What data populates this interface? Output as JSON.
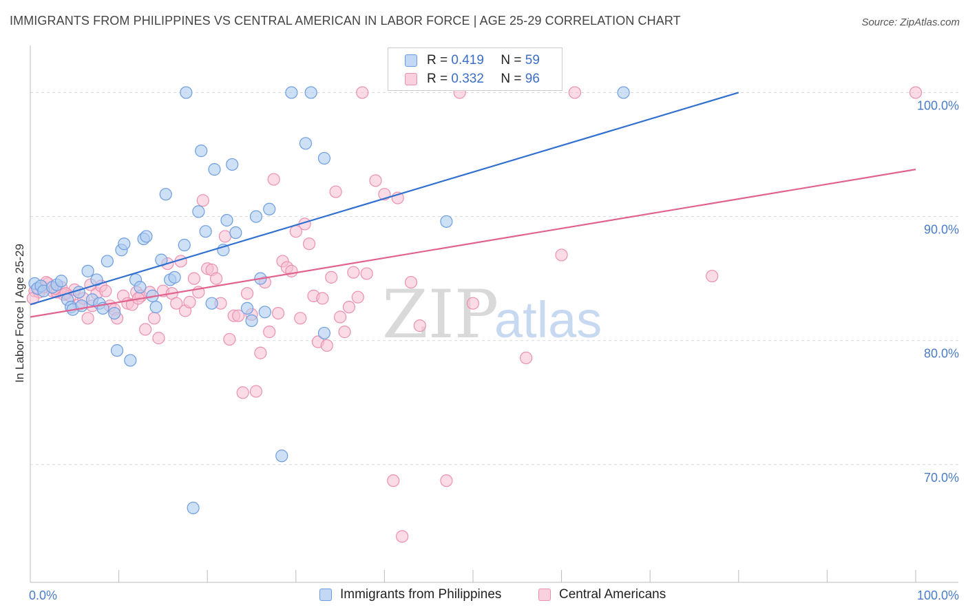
{
  "title": "IMMIGRANTS FROM PHILIPPINES VS CENTRAL AMERICAN IN LABOR FORCE | AGE 25-29 CORRELATION CHART",
  "source": "Source: ZipAtlas.com",
  "watermark": {
    "zip": "ZIP",
    "atlas": "atlas"
  },
  "legend": {
    "r_label": "R =",
    "n_label": "N =",
    "series1": {
      "r": "0.419",
      "n": "59"
    },
    "series2": {
      "r": "0.332",
      "n": "96"
    }
  },
  "bottom_legend": {
    "series1": "Immigrants from Philippines",
    "series2": "Central Americans"
  },
  "colors": {
    "blue_fill": "#aecbf0",
    "blue_stroke": "#6c9de0",
    "blue_line": "#2f6fd0",
    "pink_fill": "#f7bfd1",
    "pink_stroke": "#ec8fae",
    "pink_line": "#e0628d",
    "tick_text": "#4a7cc7"
  },
  "chart_data": {
    "type": "scatter",
    "title": "IMMIGRANTS FROM PHILIPPINES VS CENTRAL AMERICAN IN LABOR FORCE | AGE 25-29 CORRELATION CHART",
    "xlabel": "",
    "ylabel": "In Labor Force | Age 25-29",
    "xlim": [
      0,
      100
    ],
    "ylim": [
      60.5,
      103.8
    ],
    "x_tick_labels": [
      "0.0%",
      "100.0%"
    ],
    "y_ticks": [
      {
        "value": 70,
        "label": "70.0%"
      },
      {
        "value": 80,
        "label": "80.0%"
      },
      {
        "value": 90,
        "label": "90.0%"
      },
      {
        "value": 100,
        "label": "100.0%"
      }
    ],
    "series": [
      {
        "name": "Immigrants from Philippines",
        "r": 0.419,
        "n": 59,
        "trend": {
          "x0": 0,
          "y0": 82.9,
          "x1": 80,
          "y1": 100.0
        },
        "points": [
          [
            0.5,
            84.6
          ],
          [
            0.8,
            84.2
          ],
          [
            1.2,
            84.4
          ],
          [
            1.5,
            84.0
          ],
          [
            2.5,
            84.3
          ],
          [
            3.0,
            84.5
          ],
          [
            3.5,
            84.8
          ],
          [
            4.2,
            83.3
          ],
          [
            4.6,
            82.7
          ],
          [
            4.8,
            82.5
          ],
          [
            5.5,
            83.9
          ],
          [
            5.8,
            82.8
          ],
          [
            6.5,
            85.6
          ],
          [
            7.0,
            83.3
          ],
          [
            7.5,
            84.9
          ],
          [
            7.8,
            83.0
          ],
          [
            8.2,
            82.6
          ],
          [
            8.7,
            86.4
          ],
          [
            9.5,
            82.2
          ],
          [
            9.8,
            79.2
          ],
          [
            10.3,
            87.3
          ],
          [
            10.6,
            87.8
          ],
          [
            11.3,
            78.4
          ],
          [
            11.9,
            84.9
          ],
          [
            12.4,
            84.3
          ],
          [
            12.8,
            88.2
          ],
          [
            13.1,
            88.4
          ],
          [
            13.8,
            83.6
          ],
          [
            14.2,
            82.7
          ],
          [
            14.8,
            86.5
          ],
          [
            15.3,
            91.8
          ],
          [
            15.8,
            84.9
          ],
          [
            16.3,
            85.1
          ],
          [
            17.4,
            87.7
          ],
          [
            17.6,
            100.0
          ],
          [
            18.4,
            66.5
          ],
          [
            19.0,
            90.4
          ],
          [
            19.3,
            95.3
          ],
          [
            19.8,
            88.8
          ],
          [
            20.5,
            83.0
          ],
          [
            20.8,
            93.8
          ],
          [
            21.8,
            87.3
          ],
          [
            22.2,
            89.7
          ],
          [
            22.8,
            94.2
          ],
          [
            23.2,
            88.7
          ],
          [
            24.5,
            82.6
          ],
          [
            25.0,
            81.6
          ],
          [
            25.5,
            90.0
          ],
          [
            26.0,
            85.0
          ],
          [
            26.5,
            82.3
          ],
          [
            27.0,
            90.6
          ],
          [
            28.4,
            70.7
          ],
          [
            29.5,
            100.0
          ],
          [
            31.1,
            95.9
          ],
          [
            31.7,
            100.0
          ],
          [
            33.2,
            94.7
          ],
          [
            33.2,
            80.6
          ],
          [
            47.0,
            89.6
          ],
          [
            67.0,
            100.0
          ]
        ]
      },
      {
        "name": "Central Americans",
        "r": 0.332,
        "n": 96,
        "trend": {
          "x0": 0,
          "y0": 81.9,
          "x1": 100,
          "y1": 93.8
        },
        "points": [
          [
            0.5,
            84.0
          ],
          [
            1.0,
            83.9
          ],
          [
            1.5,
            84.3
          ],
          [
            2.0,
            84.6
          ],
          [
            2.5,
            84.0
          ],
          [
            3.0,
            83.9
          ],
          [
            3.5,
            84.3
          ],
          [
            3.8,
            83.7
          ],
          [
            4.5,
            83.6
          ],
          [
            5.0,
            84.1
          ],
          [
            5.5,
            82.9
          ],
          [
            6.0,
            83.4
          ],
          [
            6.5,
            81.8
          ],
          [
            7.0,
            82.8
          ],
          [
            7.5,
            83.8
          ],
          [
            8.0,
            84.4
          ],
          [
            8.5,
            84.0
          ],
          [
            9.0,
            82.8
          ],
          [
            9.5,
            82.5
          ],
          [
            9.8,
            81.8
          ],
          [
            10.5,
            83.6
          ],
          [
            11.0,
            83.0
          ],
          [
            11.5,
            82.9
          ],
          [
            12.0,
            83.9
          ],
          [
            12.5,
            83.6
          ],
          [
            13.0,
            80.9
          ],
          [
            13.5,
            83.9
          ],
          [
            14.0,
            81.8
          ],
          [
            14.5,
            80.2
          ],
          [
            15.0,
            84.0
          ],
          [
            15.5,
            86.2
          ],
          [
            16.0,
            83.8
          ],
          [
            16.5,
            83.0
          ],
          [
            17.0,
            86.4
          ],
          [
            17.5,
            82.4
          ],
          [
            18.0,
            83.1
          ],
          [
            18.5,
            85.0
          ],
          [
            19.0,
            83.9
          ],
          [
            19.5,
            91.3
          ],
          [
            20.0,
            85.8
          ],
          [
            20.5,
            85.7
          ],
          [
            21.0,
            85.0
          ],
          [
            21.5,
            83.0
          ],
          [
            22.0,
            88.4
          ],
          [
            22.5,
            80.1
          ],
          [
            23.0,
            82.0
          ],
          [
            23.5,
            82.0
          ],
          [
            24.0,
            75.8
          ],
          [
            24.5,
            83.8
          ],
          [
            25.0,
            82.1
          ],
          [
            25.5,
            75.9
          ],
          [
            26.0,
            79.0
          ],
          [
            26.5,
            84.7
          ],
          [
            27.0,
            80.7
          ],
          [
            27.5,
            93.0
          ],
          [
            28.0,
            82.2
          ],
          [
            28.5,
            86.4
          ],
          [
            29.0,
            85.9
          ],
          [
            29.5,
            85.6
          ],
          [
            30.0,
            88.8
          ],
          [
            30.5,
            81.8
          ],
          [
            31.0,
            89.4
          ],
          [
            31.5,
            87.8
          ],
          [
            32.0,
            83.6
          ],
          [
            32.5,
            79.9
          ],
          [
            33.0,
            83.4
          ],
          [
            33.5,
            79.6
          ],
          [
            34.0,
            85.1
          ],
          [
            34.5,
            92.0
          ],
          [
            35.0,
            81.9
          ],
          [
            35.5,
            80.7
          ],
          [
            36.0,
            82.7
          ],
          [
            36.5,
            85.5
          ],
          [
            37.0,
            83.5
          ],
          [
            37.5,
            100.0
          ],
          [
            38.0,
            85.4
          ],
          [
            39.0,
            92.9
          ],
          [
            40.0,
            91.8
          ],
          [
            41.0,
            68.7
          ],
          [
            41.5,
            91.5
          ],
          [
            42.0,
            64.2
          ],
          [
            43.0,
            84.7
          ],
          [
            44.0,
            81.2
          ],
          [
            47.0,
            68.7
          ],
          [
            48.5,
            100.0
          ],
          [
            50.0,
            83.0
          ],
          [
            56.0,
            78.6
          ],
          [
            60.0,
            86.9
          ],
          [
            61.5,
            100.0
          ],
          [
            77.0,
            85.2
          ],
          [
            100.0,
            100.0
          ],
          [
            0.3,
            83.4
          ],
          [
            1.8,
            84.7
          ],
          [
            2.8,
            84.2
          ],
          [
            4.0,
            83.8
          ],
          [
            6.8,
            84.5
          ],
          [
            12.2,
            83.4
          ]
        ]
      }
    ]
  }
}
